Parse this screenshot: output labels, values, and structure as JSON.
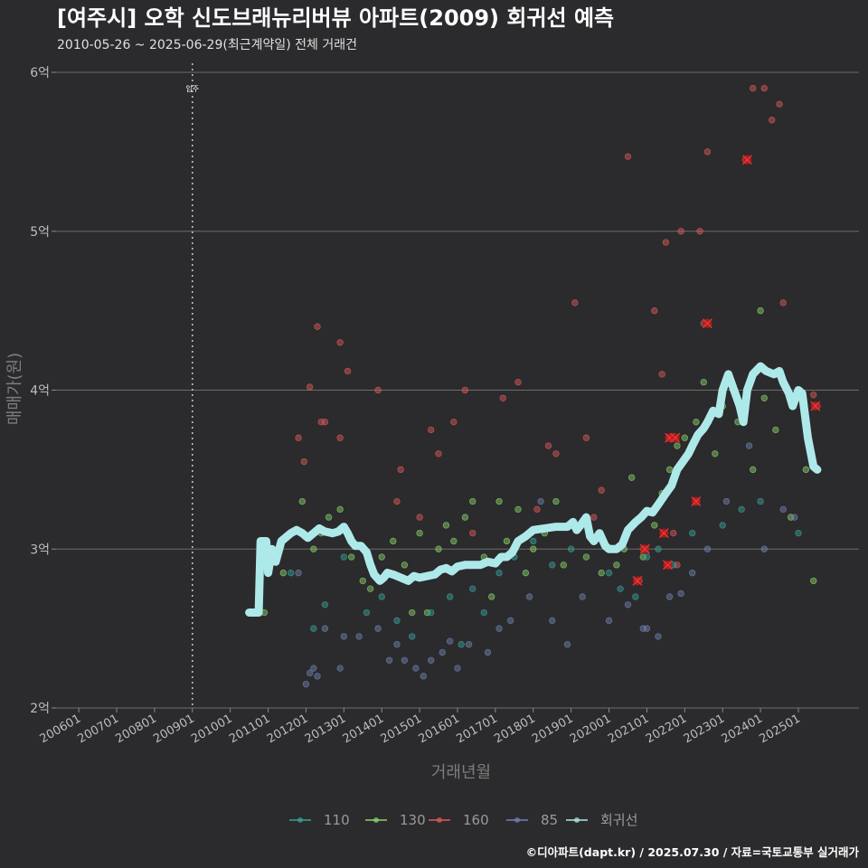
{
  "chart_data": {
    "type": "scatter",
    "title": "[여주시] 오학 신도브래뉴리버뷰 아파트(2009) 회귀선 예측",
    "subtitle": "2010-05-26 ~ 2025-06-29(최근계약일) 전체 거래건",
    "xlabel": "거래년월",
    "ylabel": "매매가(원)",
    "ylim": [
      2,
      6
    ],
    "y_ticks": [
      {
        "value": 2,
        "label": "2억"
      },
      {
        "value": 3,
        "label": "3억"
      },
      {
        "value": 4,
        "label": "4억"
      },
      {
        "value": 5,
        "label": "5억"
      },
      {
        "value": 6,
        "label": "6억"
      }
    ],
    "x_ticks": [
      "200601",
      "200701",
      "200801",
      "200901",
      "201001",
      "201101",
      "201201",
      "201301",
      "201401",
      "201501",
      "201601",
      "201701",
      "201801",
      "201901",
      "202001",
      "202101",
      "202201",
      "202301",
      "202401",
      "202501"
    ],
    "xlim": [
      2005.4,
      2026.6
    ],
    "marker": {
      "x": 2009.0,
      "label": "입주"
    },
    "legend": [
      {
        "name": "110",
        "color": "#3aa39a"
      },
      {
        "name": "130",
        "color": "#8cd46c"
      },
      {
        "name": "160",
        "color": "#e05a5a"
      },
      {
        "name": "85",
        "color": "#7482b4"
      },
      {
        "name": "회귀선",
        "color": "#aee9ea"
      }
    ],
    "series": [
      {
        "name": "130",
        "color": "#8cd46c",
        "points": [
          [
            2010.9,
            2.6
          ],
          [
            2011.4,
            2.85
          ],
          [
            2011.9,
            3.3
          ],
          [
            2012.2,
            3.0
          ],
          [
            2012.4,
            3.1
          ],
          [
            2012.6,
            3.2
          ],
          [
            2012.9,
            3.25
          ],
          [
            2013.2,
            2.95
          ],
          [
            2013.5,
            2.8
          ],
          [
            2013.7,
            2.75
          ],
          [
            2014.0,
            2.95
          ],
          [
            2014.3,
            3.05
          ],
          [
            2014.6,
            2.9
          ],
          [
            2014.8,
            2.6
          ],
          [
            2015.0,
            3.1
          ],
          [
            2015.2,
            2.6
          ],
          [
            2015.5,
            3.0
          ],
          [
            2015.7,
            3.15
          ],
          [
            2015.9,
            3.05
          ],
          [
            2016.2,
            3.2
          ],
          [
            2016.4,
            3.3
          ],
          [
            2016.7,
            2.95
          ],
          [
            2016.9,
            2.7
          ],
          [
            2017.1,
            3.3
          ],
          [
            2017.3,
            3.05
          ],
          [
            2017.6,
            3.25
          ],
          [
            2017.8,
            2.85
          ],
          [
            2018.0,
            3.0
          ],
          [
            2018.3,
            3.1
          ],
          [
            2018.6,
            3.3
          ],
          [
            2018.8,
            2.9
          ],
          [
            2019.0,
            3.15
          ],
          [
            2019.4,
            2.95
          ],
          [
            2019.8,
            2.85
          ],
          [
            2020.2,
            2.9
          ],
          [
            2020.4,
            3.0
          ],
          [
            2020.6,
            3.45
          ],
          [
            2020.9,
            2.95
          ],
          [
            2021.2,
            3.15
          ],
          [
            2021.4,
            3.35
          ],
          [
            2021.6,
            3.5
          ],
          [
            2021.8,
            3.65
          ],
          [
            2022.0,
            3.7
          ],
          [
            2022.3,
            3.8
          ],
          [
            2022.5,
            4.05
          ],
          [
            2022.8,
            3.6
          ],
          [
            2023.0,
            3.9
          ],
          [
            2023.4,
            3.8
          ],
          [
            2023.8,
            3.5
          ],
          [
            2024.0,
            4.5
          ],
          [
            2024.1,
            3.95
          ],
          [
            2024.4,
            3.75
          ],
          [
            2024.8,
            3.2
          ],
          [
            2025.2,
            3.5
          ],
          [
            2025.4,
            2.8
          ]
        ]
      },
      {
        "name": "160",
        "color": "#e05a5a",
        "points": [
          [
            2011.8,
            3.7
          ],
          [
            2011.95,
            3.55
          ],
          [
            2012.1,
            4.02
          ],
          [
            2012.3,
            4.4
          ],
          [
            2012.4,
            3.8
          ],
          [
            2012.5,
            3.8
          ],
          [
            2012.9,
            4.3
          ],
          [
            2012.9,
            3.7
          ],
          [
            2013.1,
            4.12
          ],
          [
            2013.9,
            4.0
          ],
          [
            2014.4,
            3.3
          ],
          [
            2014.5,
            3.5
          ],
          [
            2015.0,
            3.2
          ],
          [
            2015.3,
            3.75
          ],
          [
            2015.5,
            3.6
          ],
          [
            2015.9,
            3.8
          ],
          [
            2016.2,
            4.0
          ],
          [
            2016.4,
            3.1
          ],
          [
            2017.2,
            3.95
          ],
          [
            2017.6,
            4.05
          ],
          [
            2018.1,
            3.25
          ],
          [
            2018.4,
            3.65
          ],
          [
            2018.6,
            3.6
          ],
          [
            2019.1,
            4.55
          ],
          [
            2019.4,
            3.7
          ],
          [
            2019.6,
            3.2
          ],
          [
            2019.8,
            3.37
          ],
          [
            2020.5,
            5.47
          ],
          [
            2020.8,
            2.8
          ],
          [
            2020.9,
            3.0
          ],
          [
            2021.2,
            4.5
          ],
          [
            2021.4,
            4.1
          ],
          [
            2021.5,
            4.93
          ],
          [
            2021.6,
            3.7
          ],
          [
            2021.7,
            3.1
          ],
          [
            2021.8,
            2.9
          ],
          [
            2021.9,
            5.0
          ],
          [
            2022.3,
            3.3
          ],
          [
            2022.4,
            5.0
          ],
          [
            2022.5,
            4.42
          ],
          [
            2022.6,
            5.5
          ],
          [
            2023.6,
            5.45
          ],
          [
            2023.8,
            5.9
          ],
          [
            2024.1,
            5.9
          ],
          [
            2024.3,
            5.7
          ],
          [
            2024.5,
            5.8
          ],
          [
            2024.6,
            4.55
          ],
          [
            2025.5,
            3.9
          ],
          [
            2025.4,
            3.97
          ]
        ]
      },
      {
        "name": "110",
        "color": "#3aa39a",
        "points": [
          [
            2011.6,
            2.85
          ],
          [
            2012.2,
            2.5
          ],
          [
            2012.5,
            2.65
          ],
          [
            2013.0,
            2.95
          ],
          [
            2013.6,
            2.6
          ],
          [
            2014.0,
            2.7
          ],
          [
            2014.4,
            2.55
          ],
          [
            2014.8,
            2.45
          ],
          [
            2015.3,
            2.6
          ],
          [
            2015.8,
            2.7
          ],
          [
            2016.1,
            2.4
          ],
          [
            2016.4,
            2.75
          ],
          [
            2016.7,
            2.6
          ],
          [
            2017.1,
            2.85
          ],
          [
            2017.5,
            2.95
          ],
          [
            2018.0,
            3.05
          ],
          [
            2018.5,
            2.9
          ],
          [
            2019.0,
            3.0
          ],
          [
            2019.5,
            3.1
          ],
          [
            2020.0,
            2.85
          ],
          [
            2020.3,
            2.75
          ],
          [
            2020.7,
            2.7
          ],
          [
            2021.0,
            2.95
          ],
          [
            2021.3,
            3.0
          ],
          [
            2021.7,
            2.9
          ],
          [
            2022.2,
            3.1
          ],
          [
            2023.0,
            3.15
          ],
          [
            2023.5,
            3.25
          ],
          [
            2024.0,
            3.3
          ],
          [
            2025.0,
            3.1
          ]
        ]
      },
      {
        "name": "85",
        "color": "#7482b4",
        "points": [
          [
            2011.8,
            2.85
          ],
          [
            2012.0,
            2.15
          ],
          [
            2012.1,
            2.22
          ],
          [
            2012.2,
            2.25
          ],
          [
            2012.3,
            2.2
          ],
          [
            2012.5,
            2.5
          ],
          [
            2012.9,
            2.25
          ],
          [
            2013.0,
            2.45
          ],
          [
            2013.4,
            2.45
          ],
          [
            2013.9,
            2.5
          ],
          [
            2014.2,
            2.3
          ],
          [
            2014.4,
            2.4
          ],
          [
            2014.6,
            2.3
          ],
          [
            2014.9,
            2.25
          ],
          [
            2015.1,
            2.2
          ],
          [
            2015.3,
            2.3
          ],
          [
            2015.6,
            2.35
          ],
          [
            2015.8,
            2.42
          ],
          [
            2016.0,
            2.25
          ],
          [
            2016.3,
            2.4
          ],
          [
            2016.8,
            2.35
          ],
          [
            2017.1,
            2.5
          ],
          [
            2017.4,
            2.55
          ],
          [
            2017.9,
            2.7
          ],
          [
            2018.2,
            3.3
          ],
          [
            2018.5,
            2.55
          ],
          [
            2018.9,
            2.4
          ],
          [
            2019.3,
            2.7
          ],
          [
            2020.0,
            2.55
          ],
          [
            2020.5,
            2.65
          ],
          [
            2020.9,
            2.5
          ],
          [
            2021.0,
            2.5
          ],
          [
            2021.3,
            2.45
          ],
          [
            2021.6,
            2.7
          ],
          [
            2021.9,
            2.72
          ],
          [
            2022.2,
            2.85
          ],
          [
            2022.6,
            3.0
          ],
          [
            2023.1,
            3.3
          ],
          [
            2023.7,
            3.65
          ],
          [
            2024.1,
            3.0
          ],
          [
            2024.6,
            3.25
          ],
          [
            2024.9,
            3.2
          ]
        ]
      },
      {
        "name": "highlight",
        "color": "#ff3030",
        "points": [
          [
            2020.75,
            2.8
          ],
          [
            2020.95,
            3.0
          ],
          [
            2021.45,
            3.1
          ],
          [
            2021.55,
            2.9
          ],
          [
            2021.6,
            3.7
          ],
          [
            2021.75,
            3.7
          ],
          [
            2022.3,
            3.3
          ],
          [
            2022.6,
            4.42
          ],
          [
            2023.65,
            5.45
          ],
          [
            2025.45,
            3.9
          ]
        ]
      }
    ],
    "regression": [
      [
        2010.5,
        2.6
      ],
      [
        2010.75,
        2.6
      ],
      [
        2010.8,
        3.05
      ],
      [
        2010.95,
        3.05
      ],
      [
        2011.0,
        2.85
      ],
      [
        2011.1,
        3.0
      ],
      [
        2011.2,
        2.92
      ],
      [
        2011.35,
        3.05
      ],
      [
        2011.6,
        3.1
      ],
      [
        2011.75,
        3.12
      ],
      [
        2011.9,
        3.1
      ],
      [
        2012.05,
        3.07
      ],
      [
        2012.2,
        3.1
      ],
      [
        2012.35,
        3.13
      ],
      [
        2012.5,
        3.11
      ],
      [
        2012.7,
        3.1
      ],
      [
        2012.85,
        3.11
      ],
      [
        2013.0,
        3.14
      ],
      [
        2013.1,
        3.1
      ],
      [
        2013.2,
        3.05
      ],
      [
        2013.3,
        3.02
      ],
      [
        2013.45,
        3.02
      ],
      [
        2013.6,
        2.98
      ],
      [
        2013.7,
        2.9
      ],
      [
        2013.8,
        2.84
      ],
      [
        2013.95,
        2.8
      ],
      [
        2014.05,
        2.82
      ],
      [
        2014.15,
        2.85
      ],
      [
        2014.3,
        2.84
      ],
      [
        2014.5,
        2.82
      ],
      [
        2014.7,
        2.8
      ],
      [
        2014.85,
        2.83
      ],
      [
        2015.0,
        2.82
      ],
      [
        2015.2,
        2.83
      ],
      [
        2015.4,
        2.84
      ],
      [
        2015.55,
        2.87
      ],
      [
        2015.7,
        2.88
      ],
      [
        2015.85,
        2.86
      ],
      [
        2016.0,
        2.89
      ],
      [
        2016.2,
        2.9
      ],
      [
        2016.4,
        2.9
      ],
      [
        2016.6,
        2.9
      ],
      [
        2016.8,
        2.92
      ],
      [
        2017.0,
        2.91
      ],
      [
        2017.15,
        2.95
      ],
      [
        2017.3,
        2.95
      ],
      [
        2017.45,
        2.98
      ],
      [
        2017.6,
        3.05
      ],
      [
        2017.8,
        3.08
      ],
      [
        2018.0,
        3.12
      ],
      [
        2018.3,
        3.13
      ],
      [
        2018.6,
        3.14
      ],
      [
        2018.9,
        3.14
      ],
      [
        2019.05,
        3.17
      ],
      [
        2019.15,
        3.12
      ],
      [
        2019.25,
        3.15
      ],
      [
        2019.4,
        3.2
      ],
      [
        2019.5,
        3.08
      ],
      [
        2019.6,
        3.05
      ],
      [
        2019.75,
        3.1
      ],
      [
        2019.9,
        3.02
      ],
      [
        2020.0,
        3.0
      ],
      [
        2020.2,
        3.0
      ],
      [
        2020.35,
        3.03
      ],
      [
        2020.5,
        3.12
      ],
      [
        2020.7,
        3.17
      ],
      [
        2020.85,
        3.2
      ],
      [
        2021.0,
        3.24
      ],
      [
        2021.15,
        3.23
      ],
      [
        2021.3,
        3.28
      ],
      [
        2021.5,
        3.35
      ],
      [
        2021.65,
        3.4
      ],
      [
        2021.8,
        3.5
      ],
      [
        2021.95,
        3.55
      ],
      [
        2022.1,
        3.6
      ],
      [
        2022.2,
        3.65
      ],
      [
        2022.35,
        3.72
      ],
      [
        2022.5,
        3.76
      ],
      [
        2022.6,
        3.8
      ],
      [
        2022.75,
        3.87
      ],
      [
        2022.9,
        3.85
      ],
      [
        2023.0,
        4.0
      ],
      [
        2023.15,
        4.1
      ],
      [
        2023.3,
        4.0
      ],
      [
        2023.45,
        3.9
      ],
      [
        2023.55,
        3.8
      ],
      [
        2023.65,
        4.0
      ],
      [
        2023.8,
        4.1
      ],
      [
        2024.0,
        4.15
      ],
      [
        2024.15,
        4.12
      ],
      [
        2024.35,
        4.1
      ],
      [
        2024.5,
        4.12
      ],
      [
        2024.6,
        4.05
      ],
      [
        2024.75,
        3.98
      ],
      [
        2024.85,
        3.9
      ],
      [
        2025.0,
        4.0
      ],
      [
        2025.1,
        3.98
      ],
      [
        2025.25,
        3.7
      ],
      [
        2025.4,
        3.52
      ],
      [
        2025.5,
        3.5
      ]
    ]
  },
  "caption": "©디아파트(dapt.kr) / 2025.07.30 / 자료=국토교통부 실거래가"
}
